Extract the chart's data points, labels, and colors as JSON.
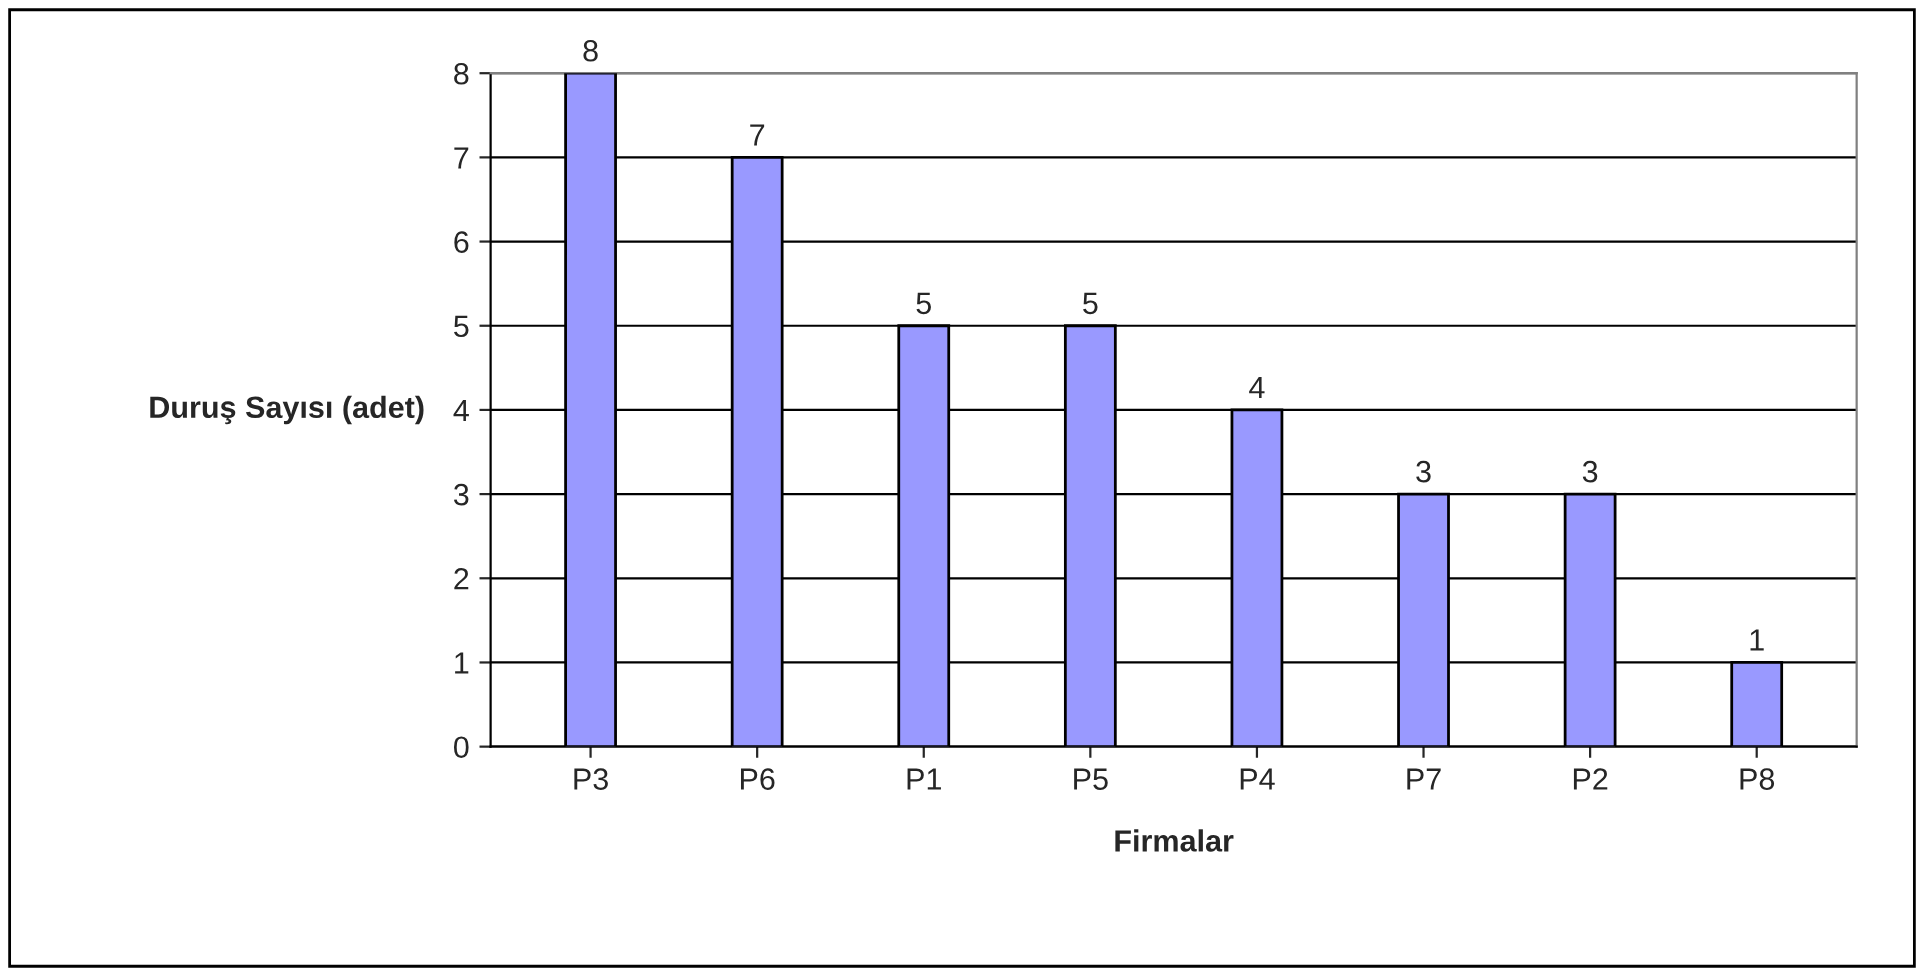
{
  "chart_data": {
    "type": "bar",
    "xlabel": "Firmalar",
    "ylabel": "Duruş Sayısı (adet)",
    "categories": [
      "P3",
      "P6",
      "P1",
      "P5",
      "P4",
      "P7",
      "P2",
      "P8"
    ],
    "values": [
      8,
      7,
      5,
      5,
      4,
      3,
      3,
      1
    ],
    "color": "#9999ff",
    "ylim": [
      0,
      8
    ],
    "yticks": [
      0,
      1,
      2,
      3,
      4,
      5,
      6,
      7,
      8
    ],
    "grid": "y",
    "data_labels": true
  }
}
